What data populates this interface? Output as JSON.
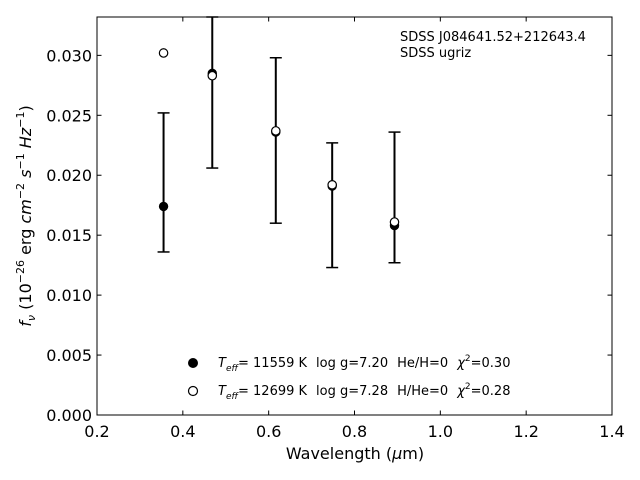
{
  "chart_data": {
    "type": "scatter",
    "title": "",
    "xlabel": "Wavelength (μm)",
    "ylabel": "f_ν (10^-26 erg cm^-2 s^-1 Hz^-1)",
    "xlim": [
      0.2,
      1.4
    ],
    "ylim": [
      0.0,
      0.0332
    ],
    "xticks": [
      "0.2",
      "0.4",
      "0.6",
      "0.8",
      "1.0",
      "1.2",
      "1.4"
    ],
    "yticks": [
      "0.000",
      "0.005",
      "0.010",
      "0.015",
      "0.020",
      "0.025",
      "0.030"
    ],
    "annotation": [
      "SDSS J084641.52+212643.4",
      "SDSS ugriz"
    ],
    "observed": {
      "x": [
        0.3551,
        0.4686,
        0.6166,
        0.748,
        0.8932
      ],
      "y": [
        0.0174,
        0.0285,
        0.0237,
        0.0192,
        0.0159
      ],
      "err": [
        0.0039,
        0.0079,
        0.0061,
        0.0035,
        0.0032
      ],
      "ylow": [
        0.0136,
        0.0206,
        0.016,
        0.0123,
        0.0127
      ],
      "yhigh": [
        0.0252,
        0.0332,
        0.0298,
        0.0227,
        0.0236
      ]
    },
    "series": [
      {
        "name": "Teff= 11559 K  log g=7.20  He/H=0  χ²=0.30",
        "marker": "filled-circle",
        "x": [
          0.3551,
          0.4686,
          0.6166,
          0.748,
          0.8932
        ],
        "y": [
          0.0174,
          0.0285,
          0.0236,
          0.0191,
          0.0158
        ]
      },
      {
        "name": "Teff= 12699 K  log g=7.28  H/He=0  χ²=0.28",
        "marker": "open-circle",
        "x": [
          0.3551,
          0.4686,
          0.6166,
          0.748,
          0.8932
        ],
        "y": [
          0.0302,
          0.0283,
          0.0237,
          0.0192,
          0.0161
        ]
      }
    ],
    "legend": {
      "position": "bottom-center",
      "entries": [
        {
          "teff": "= 11559 K",
          "logg": "log g=7.20",
          "comp": "He/H=0",
          "chi": "=0.30"
        },
        {
          "teff": "= 12699 K",
          "logg": "log g=7.28",
          "comp": "H/He=0",
          "chi": "=0.28"
        }
      ]
    },
    "colors": {
      "marker": "#000000",
      "axes": "#000000",
      "background": "#ffffff"
    }
  }
}
